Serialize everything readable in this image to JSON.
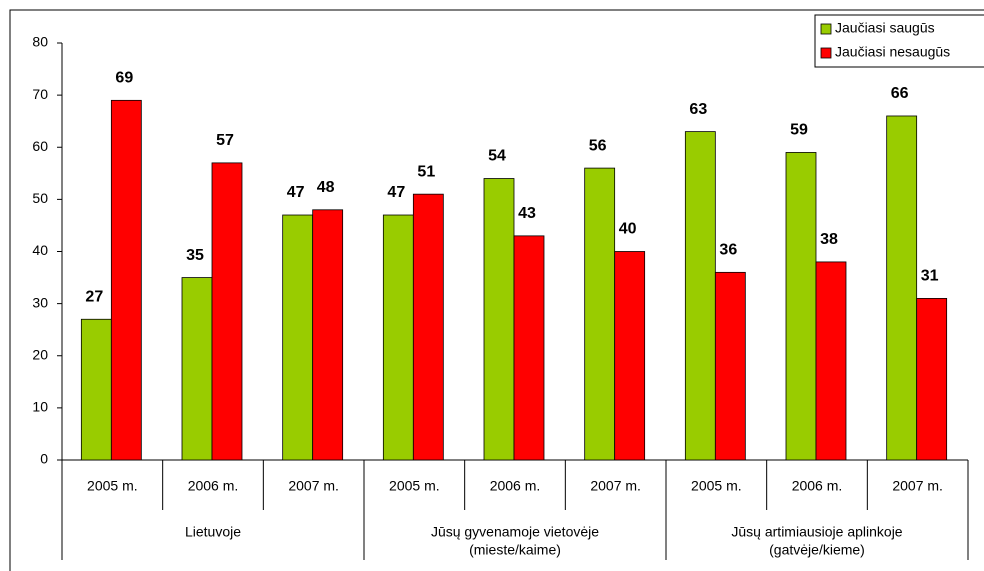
{
  "chart_data": {
    "type": "bar",
    "categories": [
      "2005 m.",
      "2006 m.",
      "2007 m.",
      "2005 m.",
      "2006 m.",
      "2007 m.",
      "2005 m.",
      "2006 m.",
      "2007 m."
    ],
    "groups": [
      {
        "label": [
          "Lietuvoje"
        ]
      },
      {
        "label": [
          "Jūsų gyvenamoje vietovėje",
          "(mieste/kaime)"
        ]
      },
      {
        "label": [
          "Jūsų artimiausioje aplinkoje",
          "(gatvėje/kieme)"
        ]
      }
    ],
    "series": [
      {
        "name": "Jaučiasi saugūs",
        "color": "#99cc00",
        "values": [
          27,
          35,
          47,
          47,
          54,
          56,
          63,
          59,
          66
        ]
      },
      {
        "name": "Jaučiasi nesaugūs",
        "color": "#ff0000",
        "values": [
          69,
          57,
          48,
          51,
          43,
          40,
          36,
          38,
          31
        ]
      }
    ],
    "ylim": [
      0,
      80
    ],
    "yticks": [
      0,
      10,
      20,
      30,
      40,
      50,
      60,
      70,
      80
    ],
    "legend": "top-right"
  }
}
